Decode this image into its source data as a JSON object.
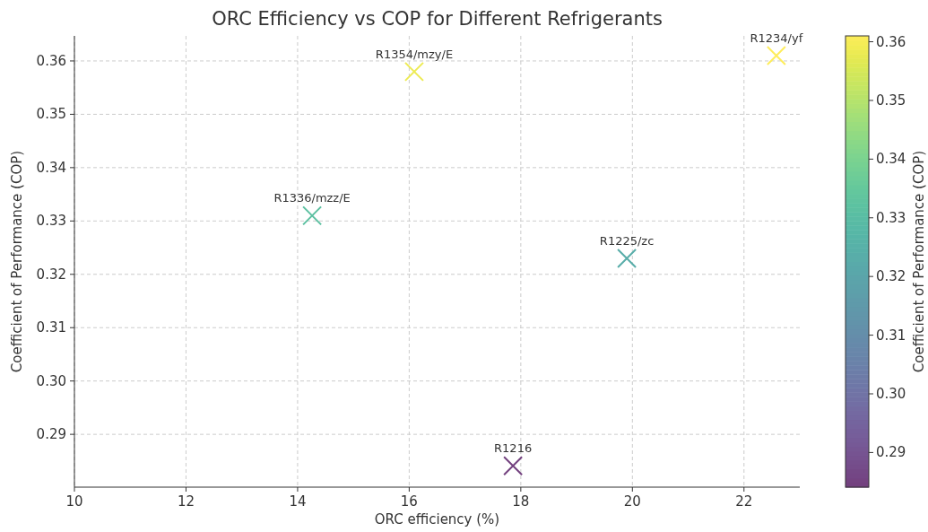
{
  "chart_data": {
    "type": "scatter",
    "title": "ORC Efficiency vs COP for Different Refrigerants",
    "xlabel": "ORC efficiency (%)",
    "ylabel": "Coefficient of Performance (COP)",
    "clabel": "Coefficient of Performance (COP)",
    "x": [
      14.26,
      16.09,
      17.86,
      19.9,
      22.58
    ],
    "values": [
      0.331,
      0.358,
      0.2841,
      0.323,
      0.361
    ],
    "cvalues": [
      0.331,
      0.358,
      0.2841,
      0.323,
      0.361
    ],
    "clim": [
      0.2841,
      0.361
    ],
    "cticks": [
      0.29,
      {
        "value": 0.3,
        "label": "0.30"
      },
      0.31,
      0.32,
      0.33,
      0.34,
      0.35,
      0.36
    ],
    "xlim": [
      10,
      23
    ],
    "xticks": [
      10,
      12,
      14,
      16,
      18,
      20,
      22
    ],
    "ylim": [
      0.2801,
      0.3647
    ],
    "yticks": [
      0.29,
      {
        "value": 0.3,
        "label": "0.30"
      },
      0.31,
      0.32,
      0.33,
      0.34,
      0.35,
      0.36
    ],
    "grid": true,
    "marker": "cross",
    "annotations": [
      {
        "text": "R1336/mzz/E",
        "x": 14.26,
        "y": 0.331
      },
      {
        "text": "R1354/mzy/E",
        "x": 16.09,
        "y": 0.358
      },
      {
        "text": "R1216",
        "x": 17.86,
        "y": 0.2841
      },
      {
        "text": "R1225/zc",
        "x": 19.9,
        "y": 0.323
      },
      {
        "text": "R1234/yf",
        "x": 22.58,
        "y": 0.361
      }
    ]
  }
}
